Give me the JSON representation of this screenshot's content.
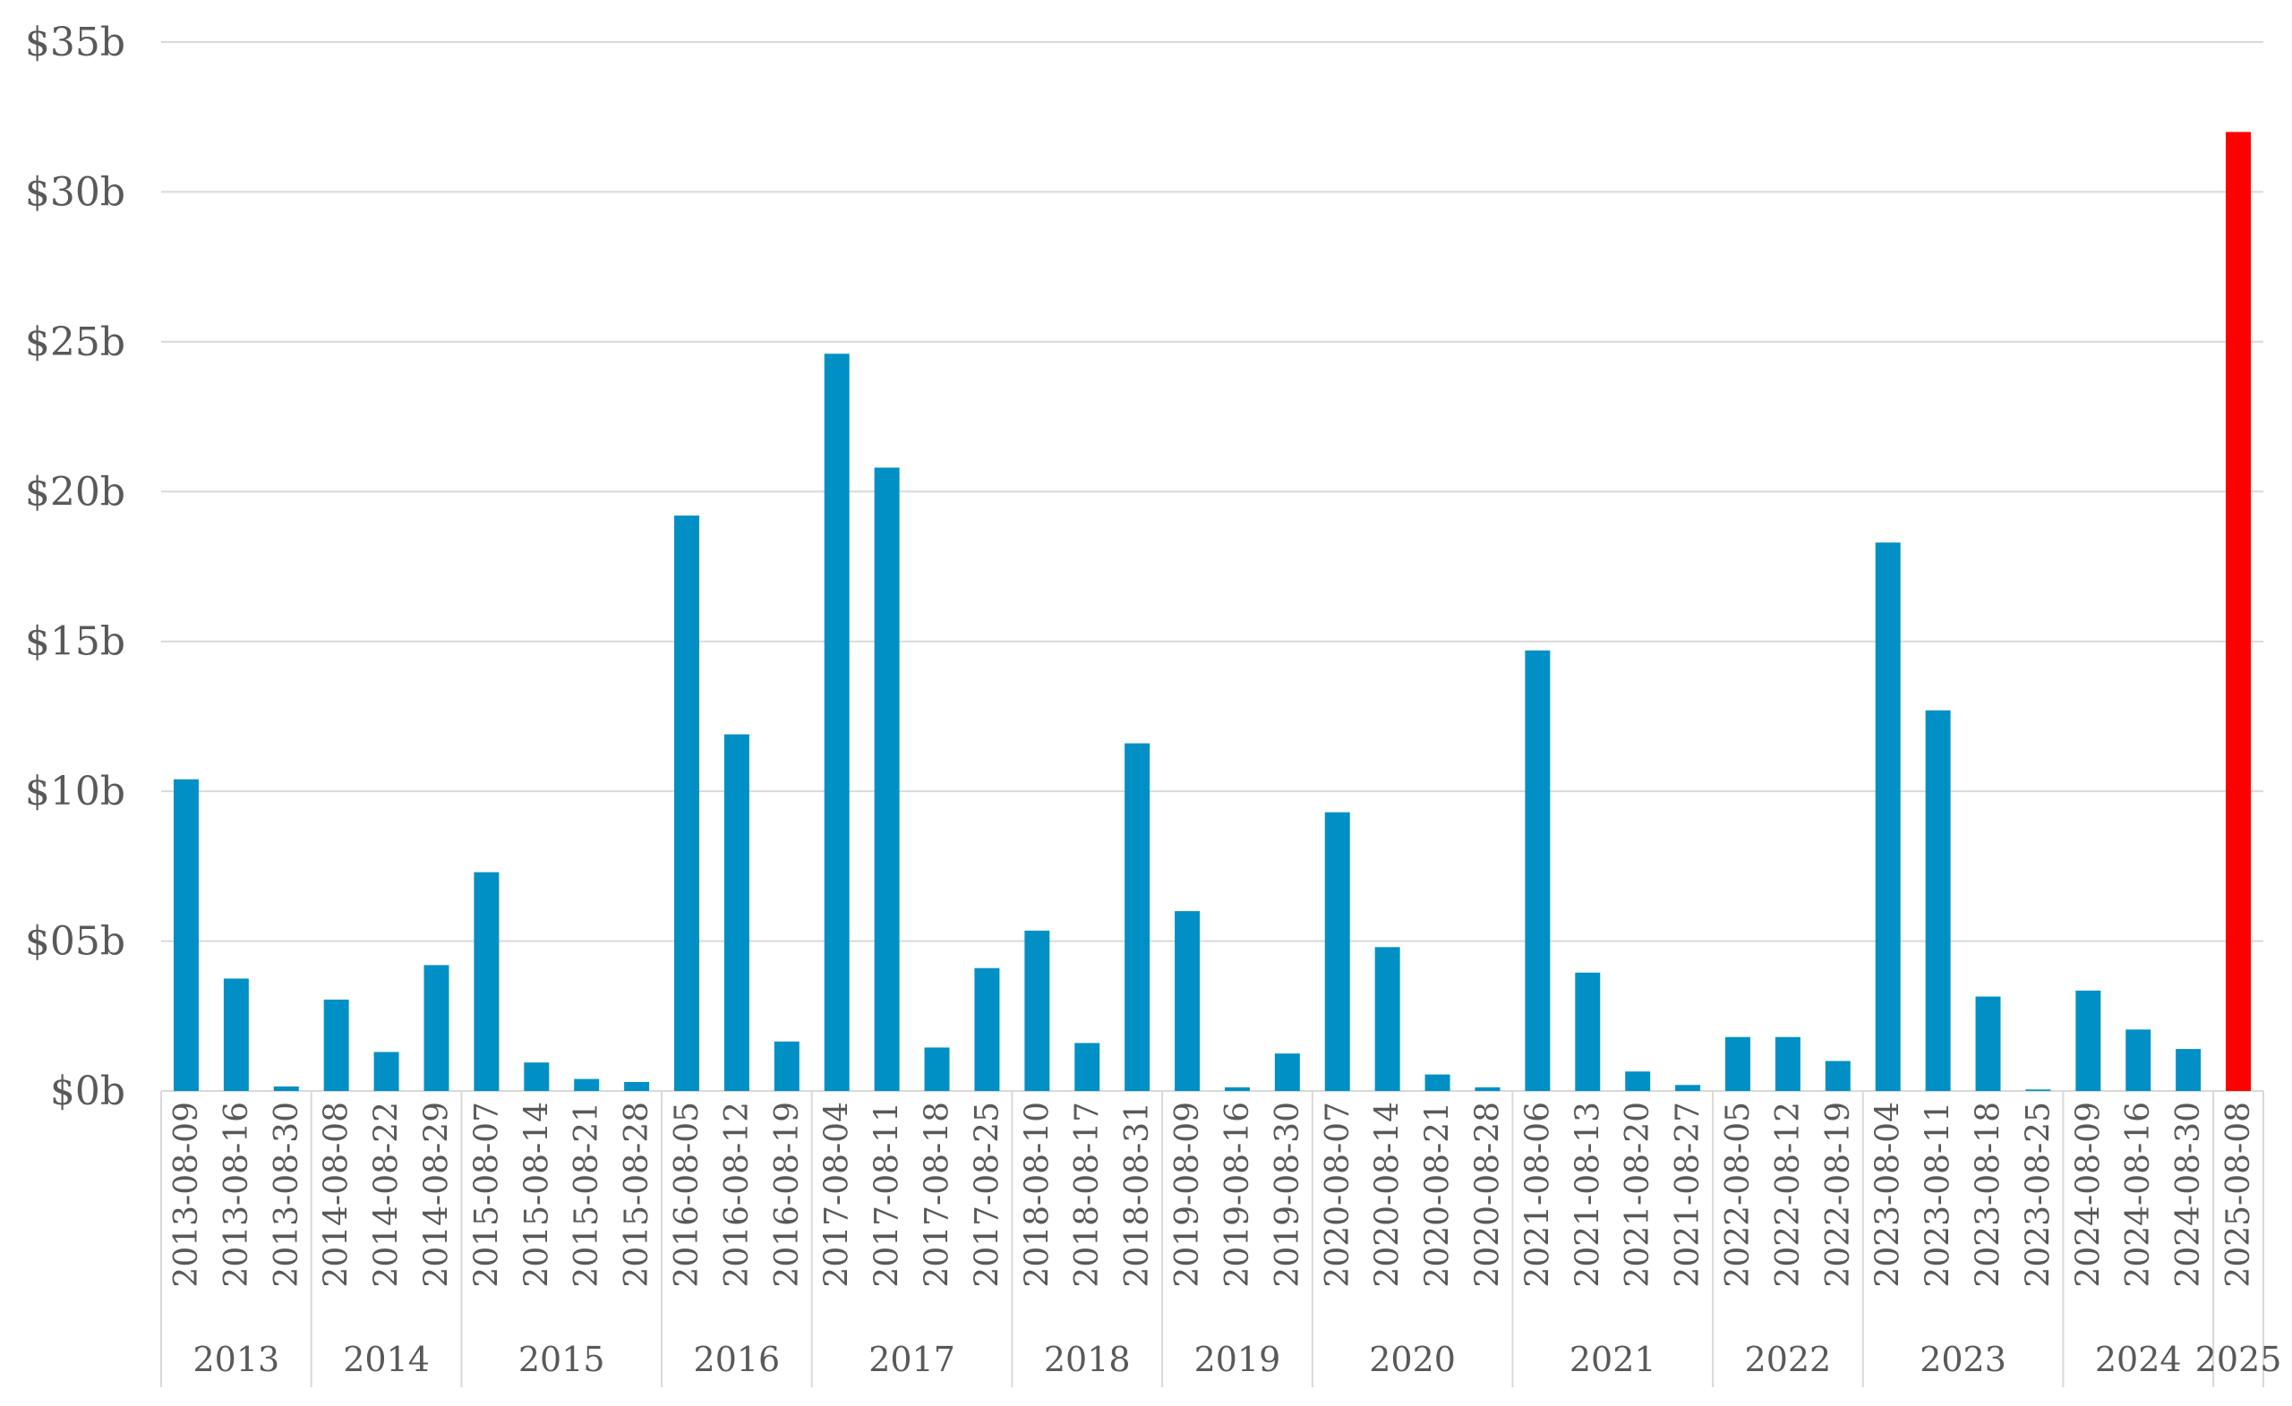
{
  "chart_data": {
    "type": "bar",
    "title": "",
    "xlabel": "",
    "ylabel": "",
    "ylim": [
      0,
      35
    ],
    "yticks": [
      0,
      5,
      10,
      15,
      20,
      25,
      30,
      35
    ],
    "ytick_labels": [
      "$0b",
      "$05b",
      "$10b",
      "$15b",
      "$20b",
      "$25b",
      "$30b",
      "$35b"
    ],
    "grid": true,
    "legend": "none",
    "colors": {
      "default": "#0090C5",
      "highlight": "#FF0000",
      "grid": "#D9D9D9",
      "text": "#595959"
    },
    "categories": [
      "2013-08-09",
      "2013-08-16",
      "2013-08-30",
      "2014-08-08",
      "2014-08-22",
      "2014-08-29",
      "2015-08-07",
      "2015-08-14",
      "2015-08-21",
      "2015-08-28",
      "2016-08-05",
      "2016-08-12",
      "2016-08-19",
      "2017-08-04",
      "2017-08-11",
      "2017-08-18",
      "2017-08-25",
      "2018-08-10",
      "2018-08-17",
      "2018-08-31",
      "2019-08-09",
      "2019-08-16",
      "2019-08-30",
      "2020-08-07",
      "2020-08-14",
      "2020-08-21",
      "2020-08-28",
      "2021-08-06",
      "2021-08-13",
      "2021-08-20",
      "2021-08-27",
      "2022-08-05",
      "2022-08-12",
      "2022-08-19",
      "2023-08-04",
      "2023-08-11",
      "2023-08-18",
      "2023-08-25",
      "2024-08-09",
      "2024-08-16",
      "2024-08-30",
      "2025-08-08"
    ],
    "values": [
      10.4,
      3.75,
      0.15,
      3.05,
      1.3,
      4.2,
      7.3,
      0.95,
      0.4,
      0.3,
      19.2,
      11.9,
      1.65,
      24.6,
      20.8,
      1.45,
      4.1,
      5.35,
      1.6,
      11.6,
      6.0,
      0.12,
      1.25,
      9.3,
      4.8,
      0.55,
      0.12,
      14.7,
      3.95,
      0.65,
      0.2,
      1.8,
      1.8,
      1.0,
      18.3,
      12.7,
      3.15,
      0.05,
      3.35,
      2.05,
      1.4,
      32.0
    ],
    "highlight_index": 41,
    "year_groups": [
      {
        "label": "2013",
        "count": 3
      },
      {
        "label": "2014",
        "count": 3
      },
      {
        "label": "2015",
        "count": 4
      },
      {
        "label": "2016",
        "count": 3
      },
      {
        "label": "2017",
        "count": 4
      },
      {
        "label": "2018",
        "count": 3
      },
      {
        "label": "2019",
        "count": 3
      },
      {
        "label": "2020",
        "count": 4
      },
      {
        "label": "2021",
        "count": 4
      },
      {
        "label": "2022",
        "count": 3
      },
      {
        "label": "2023",
        "count": 4
      },
      {
        "label": "2024",
        "count": 3
      },
      {
        "label": "2025",
        "count": 1
      }
    ]
  }
}
